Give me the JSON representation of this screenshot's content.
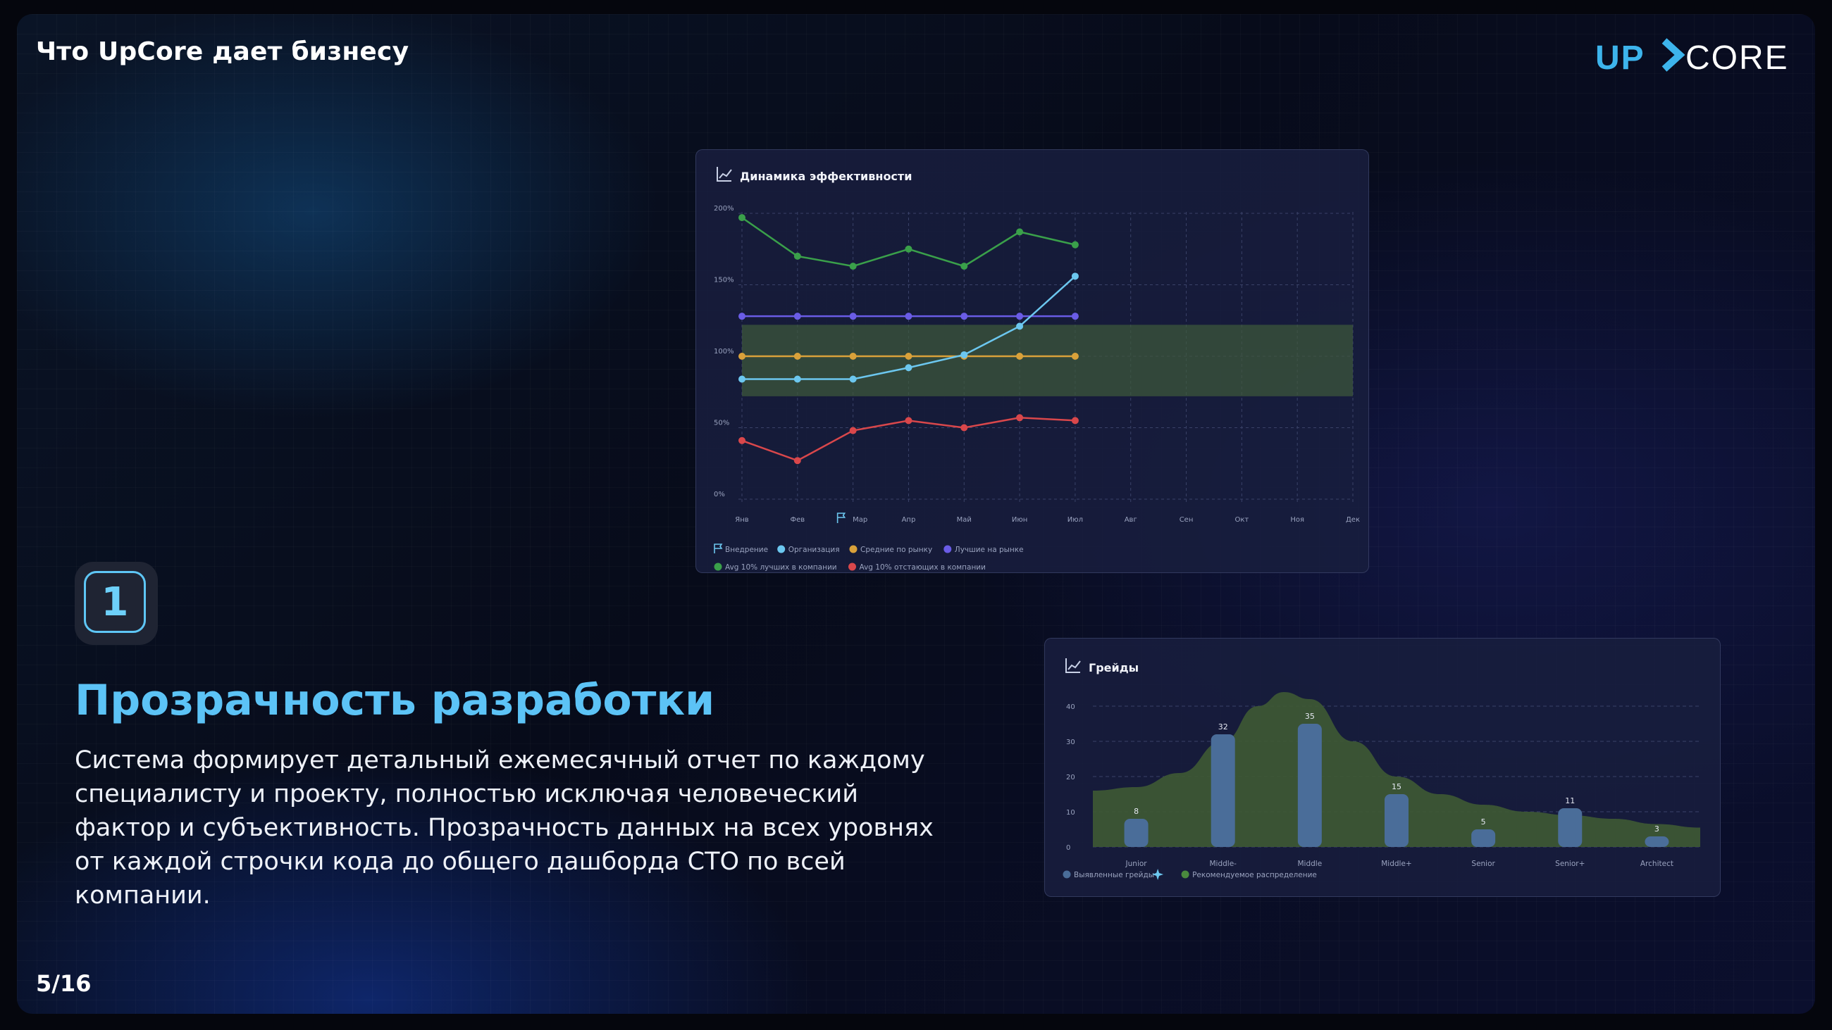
{
  "slide": {
    "section_title": "Что UpCore дает бизнесу",
    "logo": {
      "left": "UP",
      "right": "CORE",
      "accent_color": "#3db4ec"
    },
    "page_number": "5/16"
  },
  "feature": {
    "number": "1",
    "title": "Прозрачность разработки",
    "description": "Система формирует детальный ежемесячный отчет по каждому специалисту и проекту, полностью исключая человеческий фактор и субъективность. Прозрачность данных на всех уровнях от каждой строчки кода до общего дашборда СТО по всей компании."
  },
  "chart_data": [
    {
      "type": "line",
      "title": "Динамика эффективности",
      "title_icon": "line-chart-icon",
      "categories": [
        "Янв",
        "Фев",
        "Мар",
        "Апр",
        "Май",
        "Июн",
        "Июл",
        "Авг",
        "Сен",
        "Окт",
        "Ноя",
        "Дек"
      ],
      "ylim": [
        0,
        200
      ],
      "yticks": [
        {
          "value": 0,
          "label": "0%"
        },
        {
          "value": 50,
          "label": "50%"
        },
        {
          "value": 100,
          "label": "100%"
        },
        {
          "value": 150,
          "label": "150%"
        },
        {
          "value": 200,
          "label": "200%"
        }
      ],
      "band": {
        "from": 72,
        "to": 122,
        "color": "#3f5a3a"
      },
      "implementation_marker": {
        "category": "Мар",
        "icon": "flag-icon"
      },
      "grid": true,
      "series": [
        {
          "name": "Avg 10% лучших в компании",
          "color": "#3aa04a",
          "values": [
            197,
            170,
            163,
            175,
            163,
            187,
            178,
            null,
            null,
            null,
            null,
            null
          ]
        },
        {
          "name": "Лучшие на рынке",
          "color": "#6a5ce6",
          "values": [
            128,
            128,
            128,
            128,
            128,
            128,
            128,
            null,
            null,
            null,
            null,
            null
          ]
        },
        {
          "name": "Средние по рынку",
          "color": "#d9a13a",
          "values": [
            100,
            100,
            100,
            100,
            100,
            100,
            100,
            null,
            null,
            null,
            null,
            null
          ]
        },
        {
          "name": "Организация",
          "color": "#6cc7ef",
          "values": [
            84,
            84,
            84,
            92,
            101,
            121,
            156,
            null,
            null,
            null,
            null,
            null
          ]
        },
        {
          "name": "Avg 10% отстающих в компании",
          "color": "#d9474b",
          "values": [
            41,
            27,
            48,
            55,
            50,
            57,
            55,
            null,
            null,
            null,
            null,
            null
          ]
        }
      ],
      "legend": [
        {
          "label": "Внедрение",
          "icon": "flag-icon",
          "color": "#6cc7ef"
        },
        {
          "label": "Организация",
          "color": "#6cc7ef"
        },
        {
          "label": "Средние по рынку",
          "color": "#d9a13a"
        },
        {
          "label": "Лучшие на рынке",
          "color": "#6a5ce6"
        },
        {
          "label": "Avg 10% лучших в компании",
          "color": "#3aa04a"
        },
        {
          "label": "Avg 10% отстающих в компании",
          "color": "#d9474b"
        }
      ],
      "legend_placement": "bottom"
    },
    {
      "type": "bar",
      "title": "Грейды",
      "title_icon": "line-chart-icon",
      "categories": [
        "Junior",
        "Middle-",
        "Middle",
        "Middle+",
        "Senior",
        "Senior+",
        "Architect"
      ],
      "values": [
        8,
        32,
        35,
        15,
        5,
        11,
        3
      ],
      "ylim": [
        0,
        40
      ],
      "yticks": [
        0,
        10,
        20,
        30,
        40
      ],
      "bar_color": "#4a6d99",
      "distribution_color": "#3e5a34",
      "recommended_distribution": [
        {
          "x": -0.5,
          "y": 16
        },
        {
          "x": 0,
          "y": 17
        },
        {
          "x": 0.5,
          "y": 21
        },
        {
          "x": 1,
          "y": 30
        },
        {
          "x": 1.4,
          "y": 40
        },
        {
          "x": 1.7,
          "y": 44
        },
        {
          "x": 2,
          "y": 42
        },
        {
          "x": 2.5,
          "y": 30
        },
        {
          "x": 3,
          "y": 20
        },
        {
          "x": 3.5,
          "y": 15
        },
        {
          "x": 4,
          "y": 12
        },
        {
          "x": 4.5,
          "y": 10
        },
        {
          "x": 5,
          "y": 9
        },
        {
          "x": 5.5,
          "y": 8
        },
        {
          "x": 6,
          "y": 6.5
        },
        {
          "x": 6.5,
          "y": 5.5
        }
      ],
      "grid": true,
      "legend": [
        {
          "label": "Выявленные грейды",
          "color": "#4a6d99",
          "icon": "sparkle-icon"
        },
        {
          "label": "Рекомендуемое распределение",
          "color": "#4a8a3e"
        }
      ],
      "legend_placement": "bottom-left"
    }
  ]
}
